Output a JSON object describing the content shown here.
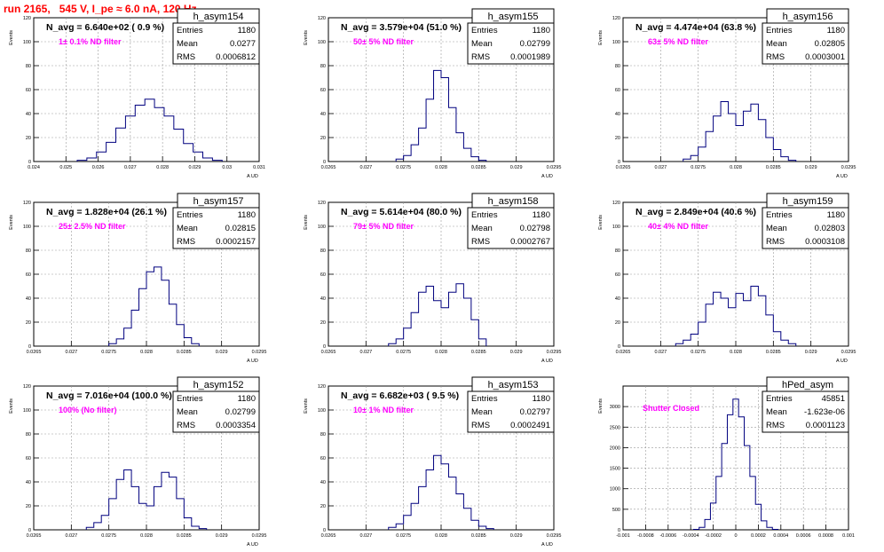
{
  "run_title": "run 2165,   545 V, I_pe ≈ 6.0 nA, 120 Hz",
  "colors": {
    "histogram": "#00007f",
    "title": "#ff0000",
    "label": "#ff00ff",
    "grid": "#999999"
  },
  "panels": [
    {
      "name": "h_asym154",
      "navg": "N_avg = 6.640e+02 ( 0.9 %)",
      "label": "1± 0.1% ND filter",
      "stats": {
        "entries": "1180",
        "mean": "0.0277",
        "rms": "0.0006812"
      },
      "ylabel": "Events",
      "xlabel": "A_UD",
      "xlim": [
        0.024,
        0.031
      ],
      "ylim": [
        0,
        120
      ],
      "yticks": [
        "0",
        "20",
        "40",
        "60",
        "80",
        "100",
        "120"
      ],
      "xticks": [
        "0.024",
        "0.025",
        "0.026",
        "0.027",
        "0.028",
        "0.029",
        "0.03",
        "0.031"
      ],
      "chart_data": {
        "type": "bar",
        "x": [
          0.0255,
          0.0258,
          0.0261,
          0.0264,
          0.0267,
          0.027,
          0.0273,
          0.0276,
          0.0279,
          0.0282,
          0.0285,
          0.0288,
          0.0291,
          0.0294,
          0.0297
        ],
        "values": [
          1,
          3,
          8,
          16,
          28,
          38,
          47,
          52,
          45,
          38,
          27,
          15,
          8,
          3,
          1
        ]
      }
    },
    {
      "name": "h_asym155",
      "navg": "N_avg = 3.579e+04 (51.0 %)",
      "label": "50± 5% ND filter",
      "stats": {
        "entries": "1180",
        "mean": "0.02799",
        "rms": "0.0001989"
      },
      "ylabel": "Events",
      "xlabel": "A_UD",
      "xlim": [
        0.0265,
        0.0295
      ],
      "ylim": [
        0,
        120
      ],
      "yticks": [
        "0",
        "20",
        "40",
        "60",
        "80",
        "100",
        "120"
      ],
      "xticks": [
        "0.0265",
        "0.027",
        "0.0275",
        "0.028",
        "0.0285",
        "0.029",
        "0.0295"
      ],
      "chart_data": {
        "type": "bar",
        "x": [
          0.02745,
          0.02755,
          0.02765,
          0.02775,
          0.02785,
          0.02795,
          0.02805,
          0.02815,
          0.02825,
          0.02835,
          0.02845,
          0.02855
        ],
        "values": [
          2,
          5,
          14,
          28,
          52,
          76,
          70,
          45,
          24,
          11,
          4,
          1
        ]
      }
    },
    {
      "name": "h_asym156",
      "navg": "N_avg = 4.474e+04 (63.8 %)",
      "label": "63± 5% ND filter",
      "stats": {
        "entries": "1180",
        "mean": "0.02805",
        "rms": "0.0003001"
      },
      "ylabel": "Events",
      "xlabel": "A_UD",
      "xlim": [
        0.0265,
        0.0295
      ],
      "ylim": [
        0,
        120
      ],
      "yticks": [
        "0",
        "20",
        "40",
        "60",
        "80",
        "100",
        "120"
      ],
      "xticks": [
        "0.0265",
        "0.027",
        "0.0275",
        "0.028",
        "0.0285",
        "0.029",
        "0.0295"
      ],
      "chart_data": {
        "type": "bar",
        "x": [
          0.02735,
          0.02745,
          0.02755,
          0.02765,
          0.02775,
          0.02785,
          0.02795,
          0.02805,
          0.02815,
          0.02825,
          0.02835,
          0.02845,
          0.02855,
          0.02865,
          0.02875
        ],
        "values": [
          2,
          5,
          12,
          25,
          38,
          50,
          40,
          30,
          42,
          48,
          35,
          20,
          10,
          4,
          1
        ]
      }
    },
    {
      "name": "h_asym157",
      "navg": "N_avg = 1.828e+04 (26.1 %)",
      "label": "25± 2.5% ND filter",
      "stats": {
        "entries": "1180",
        "mean": "0.02815",
        "rms": "0.0002157"
      },
      "ylabel": "Events",
      "xlabel": "A_UD",
      "xlim": [
        0.0265,
        0.0295
      ],
      "ylim": [
        0,
        120
      ],
      "yticks": [
        "0",
        "20",
        "40",
        "60",
        "80",
        "100",
        "120"
      ],
      "xticks": [
        "0.0265",
        "0.027",
        "0.0275",
        "0.028",
        "0.0285",
        "0.029",
        "0.0295"
      ],
      "chart_data": {
        "type": "bar",
        "x": [
          0.02755,
          0.02765,
          0.02775,
          0.02785,
          0.02795,
          0.02805,
          0.02815,
          0.02825,
          0.02835,
          0.02845,
          0.02855,
          0.02865
        ],
        "values": [
          2,
          6,
          15,
          30,
          48,
          62,
          66,
          55,
          35,
          18,
          7,
          2
        ]
      }
    },
    {
      "name": "h_asym158",
      "navg": "N_avg = 5.614e+04 (80.0 %)",
      "label": "79± 5% ND filter",
      "stats": {
        "entries": "1180",
        "mean": "0.02798",
        "rms": "0.0002767"
      },
      "ylabel": "Events",
      "xlabel": "A_UD",
      "xlim": [
        0.0265,
        0.0295
      ],
      "ylim": [
        0,
        120
      ],
      "yticks": [
        "0",
        "20",
        "40",
        "60",
        "80",
        "100",
        "120"
      ],
      "xticks": [
        "0.0265",
        "0.027",
        "0.0275",
        "0.028",
        "0.0285",
        "0.029",
        "0.0295"
      ],
      "chart_data": {
        "type": "bar",
        "x": [
          0.02735,
          0.02745,
          0.02755,
          0.02765,
          0.02775,
          0.02785,
          0.02795,
          0.02805,
          0.02815,
          0.02825,
          0.02835,
          0.02845,
          0.02855
        ],
        "values": [
          2,
          6,
          15,
          28,
          45,
          50,
          38,
          32,
          45,
          52,
          40,
          22,
          6
        ]
      }
    },
    {
      "name": "h_asym159",
      "navg": "N_avg = 2.849e+04 (40.6 %)",
      "label": "40± 4% ND filter",
      "stats": {
        "entries": "1180",
        "mean": "0.02803",
        "rms": "0.0003108"
      },
      "ylabel": "Events",
      "xlabel": "A_UD",
      "xlim": [
        0.0265,
        0.0295
      ],
      "ylim": [
        0,
        120
      ],
      "yticks": [
        "0",
        "20",
        "40",
        "60",
        "80",
        "100",
        "120"
      ],
      "xticks": [
        "0.0265",
        "0.027",
        "0.0275",
        "0.028",
        "0.0285",
        "0.029",
        "0.0295"
      ],
      "chart_data": {
        "type": "bar",
        "x": [
          0.02725,
          0.02735,
          0.02745,
          0.02755,
          0.02765,
          0.02775,
          0.02785,
          0.02795,
          0.02805,
          0.02815,
          0.02825,
          0.02835,
          0.02845,
          0.02855,
          0.02865,
          0.02875
        ],
        "values": [
          2,
          5,
          10,
          20,
          35,
          45,
          40,
          32,
          44,
          38,
          50,
          42,
          26,
          12,
          5,
          2
        ]
      }
    },
    {
      "name": "h_asym152",
      "navg": "N_avg = 7.016e+04 (100.0 %)",
      "label": "100% (No filter)",
      "stats": {
        "entries": "1180",
        "mean": "0.02799",
        "rms": "0.0003354"
      },
      "ylabel": "Events",
      "xlabel": "A_UD",
      "xlim": [
        0.0265,
        0.0295
      ],
      "ylim": [
        0,
        120
      ],
      "yticks": [
        "0",
        "20",
        "40",
        "60",
        "80",
        "100",
        "120"
      ],
      "xticks": [
        "0.0265",
        "0.027",
        "0.0275",
        "0.028",
        "0.0285",
        "0.029",
        "0.0295"
      ],
      "chart_data": {
        "type": "bar",
        "x": [
          0.02725,
          0.02735,
          0.02745,
          0.02755,
          0.02765,
          0.02775,
          0.02785,
          0.02795,
          0.02805,
          0.02815,
          0.02825,
          0.02835,
          0.02845,
          0.02855,
          0.02865,
          0.02875
        ],
        "values": [
          2,
          6,
          12,
          26,
          42,
          50,
          36,
          22,
          20,
          36,
          48,
          44,
          26,
          10,
          3,
          1
        ]
      }
    },
    {
      "name": "h_asym153",
      "navg": "N_avg = 6.682e+03 ( 9.5 %)",
      "label": "10± 1% ND filter",
      "stats": {
        "entries": "1180",
        "mean": "0.02797",
        "rms": "0.0002491"
      },
      "ylabel": "Events",
      "xlabel": "A_UD",
      "xlim": [
        0.0265,
        0.0295
      ],
      "ylim": [
        0,
        120
      ],
      "yticks": [
        "0",
        "20",
        "40",
        "60",
        "80",
        "100",
        "120"
      ],
      "xticks": [
        "0.0265",
        "0.027",
        "0.0275",
        "0.028",
        "0.0285",
        "0.029",
        "0.0295"
      ],
      "chart_data": {
        "type": "bar",
        "x": [
          0.02735,
          0.02745,
          0.02755,
          0.02765,
          0.02775,
          0.02785,
          0.02795,
          0.02805,
          0.02815,
          0.02825,
          0.02835,
          0.02845,
          0.02855,
          0.02865
        ],
        "values": [
          2,
          5,
          12,
          22,
          36,
          50,
          62,
          55,
          44,
          30,
          18,
          8,
          3,
          1
        ]
      }
    },
    {
      "name": "hPed_asym",
      "navg": "",
      "label": "Shutter Closed",
      "stats": {
        "entries": "45851",
        "mean": "-1.623e-06",
        "rms": "0.0001123"
      },
      "ylabel": "Events",
      "xlabel": "",
      "xlim": [
        -0.001,
        0.001
      ],
      "ylim": [
        0,
        3500
      ],
      "yticks": [
        "0",
        "500",
        "1000",
        "1500",
        "2000",
        "2500",
        "3000"
      ],
      "xticks": [
        "-0.001",
        "-0.0008",
        "-0.0006",
        "-0.0004",
        "-0.0002",
        "0",
        "0.0002",
        "0.0004",
        "0.0006",
        "0.0008",
        "0.001"
      ],
      "chart_data": {
        "type": "bar",
        "x": [
          -0.00035,
          -0.0003,
          -0.00025,
          -0.0002,
          -0.00015,
          -0.0001,
          -5e-05,
          0.0,
          5e-05,
          0.0001,
          0.00015,
          0.0002,
          0.00025,
          0.0003,
          0.00035
        ],
        "values": [
          10,
          60,
          250,
          650,
          1300,
          2100,
          2800,
          3180,
          2750,
          2050,
          1300,
          620,
          220,
          60,
          10
        ]
      }
    }
  ]
}
